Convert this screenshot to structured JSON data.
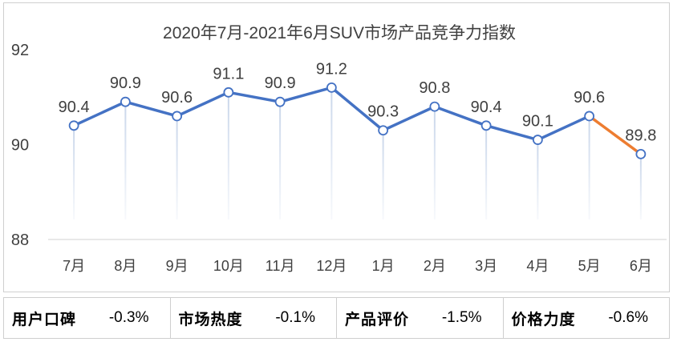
{
  "chart_data": {
    "type": "line",
    "title": "2020年7月-2021年6月SUV市场产品竞争力指数",
    "categories": [
      "7月",
      "8月",
      "9月",
      "10月",
      "11月",
      "12月",
      "1月",
      "2月",
      "3月",
      "4月",
      "5月",
      "6月"
    ],
    "values": [
      90.4,
      90.9,
      90.6,
      91.1,
      90.9,
      91.2,
      90.3,
      90.8,
      90.4,
      90.1,
      90.6,
      89.8
    ],
    "value_labels": [
      "90.4",
      "90.9",
      "90.6",
      "91.1",
      "90.9",
      "91.2",
      "90.3",
      "90.8",
      "90.4",
      "90.1",
      "90.6",
      "89.8"
    ],
    "ylim": [
      88,
      92
    ],
    "yticks": [
      "88",
      "90",
      "92"
    ],
    "xlabel": "",
    "ylabel": "",
    "colors": {
      "line": "#4472c4",
      "last_segment": "#ed7d31",
      "drop_line": "#c9d6ea",
      "marker_fill": "#ffffff"
    }
  },
  "metrics": [
    {
      "name": "用户口碑",
      "value": "-0.3%"
    },
    {
      "name": "市场热度",
      "value": "-0.1%"
    },
    {
      "name": "产品评价",
      "value": "-1.5%"
    },
    {
      "name": "价格力度",
      "value": "-0.6%"
    }
  ]
}
